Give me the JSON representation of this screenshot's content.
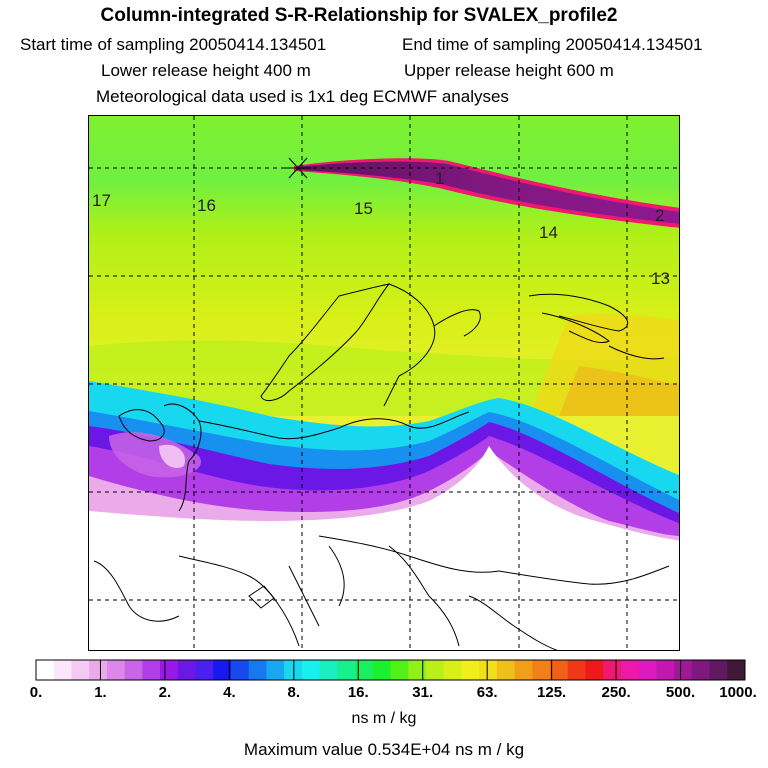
{
  "header": {
    "title": "Column-integrated S-R-Relationship for SVALEX_profile2",
    "start_time": "Start time of sampling 20050414.134501",
    "end_time": "End time of sampling 20050414.134501",
    "lower_release": "Lower release height  400 m",
    "upper_release": "Upper release height  600 m",
    "met_data": "Meteorological data used is 1x1 deg ECMWF analyses"
  },
  "map": {
    "time_labels": [
      "17",
      "16",
      "15",
      "14",
      "13",
      "1",
      "2"
    ]
  },
  "colorbar": {
    "tick_labels": [
      "0.",
      "1.",
      "2.",
      "4.",
      "8.",
      "16.",
      "31.",
      "63.",
      "125.",
      "250.",
      "500.",
      "1000."
    ],
    "colors": [
      "#ffffff",
      "#fbe6fb",
      "#f4c9f4",
      "#ebabeb",
      "#dd88e8",
      "#c965e6",
      "#b13ee6",
      "#9a18e6",
      "#6b18e6",
      "#4820f0",
      "#1818f0",
      "#1848f0",
      "#1878f0",
      "#18a8f0",
      "#18d8f0",
      "#18f0f0",
      "#18f0c0",
      "#18f090",
      "#18f060",
      "#18f030",
      "#50f018",
      "#90f018",
      "#b8f018",
      "#d8f018",
      "#f0f018",
      "#f0e018",
      "#f0c018",
      "#f0a018",
      "#f08018",
      "#f06018",
      "#f03818",
      "#f01818",
      "#f01870",
      "#f018a8",
      "#e018c0",
      "#c018b0",
      "#a01898",
      "#801880",
      "#601860",
      "#401838"
    ],
    "units": "ns m / kg",
    "max_value": "Maximum value  0.534E+04 ns m / kg"
  }
}
